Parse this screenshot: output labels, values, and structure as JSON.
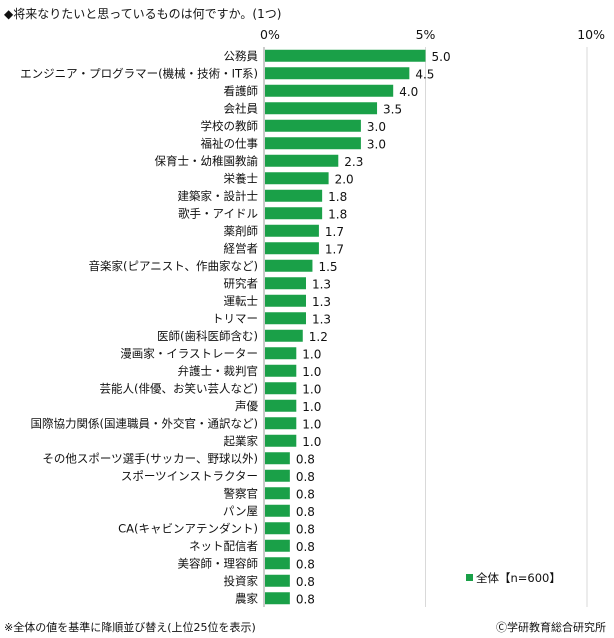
{
  "title": "◆将来なりたいと思っているものは何ですか。(1つ)",
  "footnote": "※全体の値を基準に降順並び替え(上位25位を表示)",
  "credit": "Ⓒ学研教育総合研究所",
  "colors": {
    "bar": "#1aa048",
    "grid": "#d9d9d9",
    "axis": "#999999"
  },
  "chart_data": {
    "type": "bar",
    "orientation": "horizontal",
    "categories": [
      "公務員",
      "エンジニア・プログラマー(機械・技術・IT系)",
      "看護師",
      "会社員",
      "学校の教師",
      "福祉の仕事",
      "保育士・幼稚園教諭",
      "栄養士",
      "建築家・設計士",
      "歌手・アイドル",
      "薬剤師",
      "経営者",
      "音楽家(ピアニスト、作曲家など)",
      "研究者",
      "運転士",
      "トリマー",
      "医師(歯科医師含む)",
      "漫画家・イラストレーター",
      "弁護士・裁判官",
      "芸能人(俳優、お笑い芸人など)",
      "声優",
      "国際協力関係(国連職員・外交官・通訳など)",
      "起業家",
      "その他スポーツ選手(サッカー、野球以外)",
      "スポーツインストラクター",
      "警察官",
      "パン屋",
      "CA(キャビンアテンダント)",
      "ネット配信者",
      "美容師・理容師",
      "投資家",
      "農家"
    ],
    "series": [
      {
        "name": "全体【n=600】",
        "values": [
          5.0,
          4.5,
          4.0,
          3.5,
          3.0,
          3.0,
          2.3,
          2.0,
          1.8,
          1.8,
          1.7,
          1.7,
          1.5,
          1.3,
          1.3,
          1.3,
          1.2,
          1.0,
          1.0,
          1.0,
          1.0,
          1.0,
          1.0,
          0.8,
          0.8,
          0.8,
          0.8,
          0.8,
          0.8,
          0.8,
          0.8,
          0.8
        ],
        "labels": [
          "5.0",
          "4.5",
          "4.0",
          "3.5",
          "3.0",
          "3.0",
          "2.3",
          "2.0",
          "1.8",
          "1.8",
          "1.7",
          "1.7",
          "1.5",
          "1.3",
          "1.3",
          "1.3",
          "1.2",
          "1.0",
          "1.0",
          "1.0",
          "1.0",
          "1.0",
          "1.0",
          "0.8",
          "0.8",
          "0.8",
          "0.8",
          "0.8",
          "0.8",
          "0.8",
          "0.8",
          "0.8"
        ]
      }
    ],
    "xlim": [
      0,
      10
    ],
    "xticks": [
      0,
      5,
      10
    ],
    "xtick_labels": [
      "0%",
      "5%",
      "10%"
    ],
    "grid": true,
    "legend": "bottom-right"
  }
}
